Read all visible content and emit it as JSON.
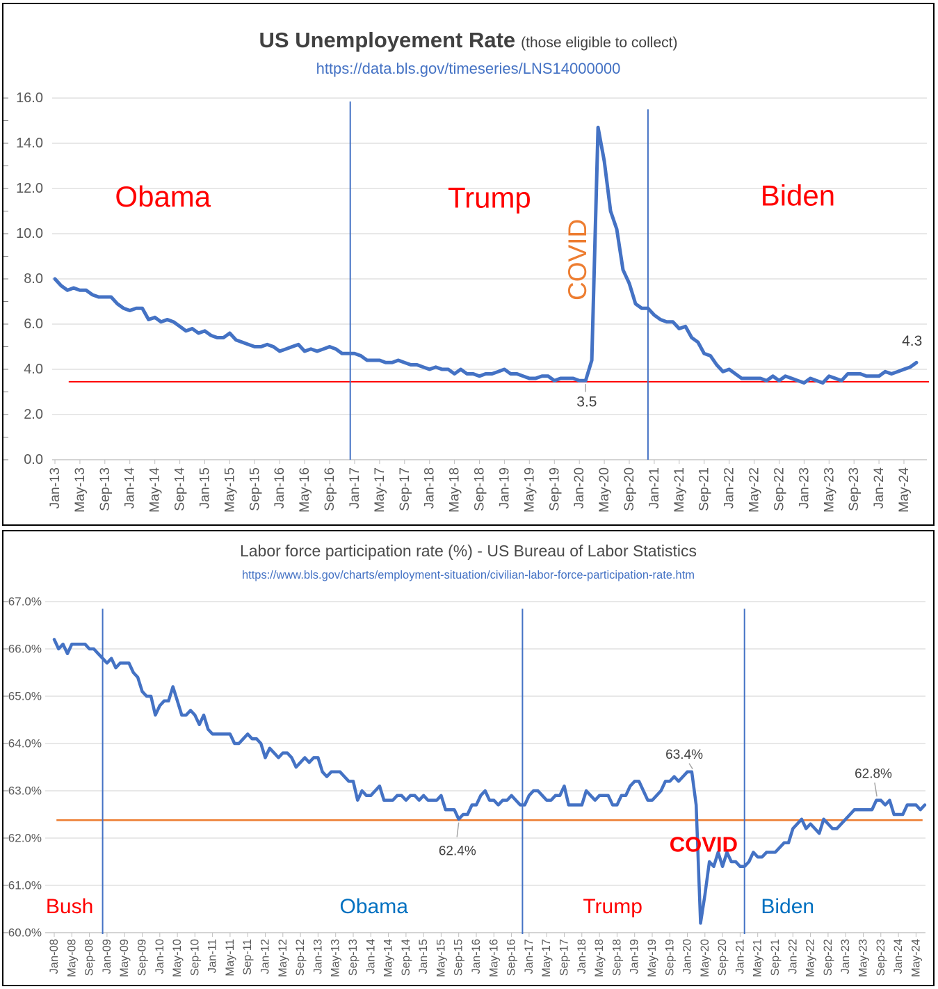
{
  "colors": {
    "series_blue": "#4472C4",
    "gridline": "#D9D9D9",
    "axis_line": "#BFBFBF",
    "axis_text": "#595959",
    "title_text": "#404040",
    "link_blue": "#4472C4",
    "annotation_red": "#FF0000",
    "annotation_orange": "#ED7D31",
    "annotation_blue": "#0070C0",
    "label_gray": "#404040",
    "leader_gray": "#A6A6A6"
  },
  "chart_data": [
    {
      "type": "line",
      "title": "US Unemployement Rate",
      "title_suffix": "(those eligible to collect)",
      "source_url": "https://data.bls.gov/timeseries/LNS14000000",
      "x_start": "Jan-2013",
      "frequency": "monthly",
      "ylim": [
        0,
        16
      ],
      "y_ticks": [
        {
          "value": 16,
          "label": "16.0"
        },
        {
          "value": 14,
          "label": "14.0"
        },
        {
          "value": 12,
          "label": "12.0"
        },
        {
          "value": 10,
          "label": "10.0"
        },
        {
          "value": 8,
          "label": "8.0"
        },
        {
          "value": 6,
          "label": "6.0"
        },
        {
          "value": 4,
          "label": "4.0"
        },
        {
          "value": 2,
          "label": "2.0"
        },
        {
          "value": 0,
          "label": "0.0"
        }
      ],
      "x_tick_labels": [
        "Jan-13",
        "May-13",
        "Sep-13",
        "Jan-14",
        "May-14",
        "Sep-14",
        "Jan-15",
        "May-15",
        "Sep-15",
        "Jan-16",
        "May-16",
        "Sep-16",
        "Jan-17",
        "May-17",
        "Sep-17",
        "Jan-18",
        "May-18",
        "Sep-18",
        "Jan-19",
        "May-19",
        "Sep-19",
        "Jan-20",
        "May-20",
        "Sep-20",
        "Jan-21",
        "May-21",
        "Sep-21",
        "Jan-22",
        "May-22",
        "Sep-22",
        "Jan-23",
        "May-23",
        "Sep-23",
        "Jan-24",
        "May-24"
      ],
      "series": [
        {
          "name": "unemployment_rate_percent",
          "color": "#4472C4",
          "values": [
            8.0,
            7.7,
            7.5,
            7.6,
            7.5,
            7.5,
            7.3,
            7.2,
            7.2,
            7.2,
            6.9,
            6.7,
            6.6,
            6.7,
            6.7,
            6.2,
            6.3,
            6.1,
            6.2,
            6.1,
            5.9,
            5.7,
            5.8,
            5.6,
            5.7,
            5.5,
            5.4,
            5.4,
            5.6,
            5.3,
            5.2,
            5.1,
            5.0,
            5.0,
            5.1,
            5.0,
            4.8,
            4.9,
            5.0,
            5.1,
            4.8,
            4.9,
            4.8,
            4.9,
            5.0,
            4.9,
            4.7,
            4.7,
            4.7,
            4.6,
            4.4,
            4.4,
            4.4,
            4.3,
            4.3,
            4.4,
            4.3,
            4.2,
            4.2,
            4.1,
            4.0,
            4.1,
            4.0,
            4.0,
            3.8,
            4.0,
            3.8,
            3.8,
            3.7,
            3.8,
            3.8,
            3.9,
            4.0,
            3.8,
            3.8,
            3.7,
            3.6,
            3.6,
            3.7,
            3.7,
            3.5,
            3.6,
            3.6,
            3.6,
            3.5,
            3.5,
            4.4,
            14.7,
            13.2,
            11.0,
            10.2,
            8.4,
            7.8,
            6.9,
            6.7,
            6.7,
            6.4,
            6.2,
            6.1,
            6.1,
            5.8,
            5.9,
            5.4,
            5.2,
            4.7,
            4.6,
            4.2,
            3.9,
            4.0,
            3.8,
            3.6,
            3.6,
            3.6,
            3.6,
            3.5,
            3.7,
            3.5,
            3.7,
            3.6,
            3.5,
            3.4,
            3.6,
            3.5,
            3.4,
            3.7,
            3.6,
            3.5,
            3.8,
            3.8,
            3.8,
            3.7,
            3.7,
            3.7,
            3.9,
            3.8,
            3.9,
            4.0,
            4.1,
            4.3
          ]
        }
      ],
      "annotations": [
        {
          "kind": "hline",
          "value": 3.45,
          "color": "#FF0000",
          "width": 2,
          "month_from": 2.2,
          "month_to": 140
        },
        {
          "kind": "vline",
          "month": 47.3,
          "color": "#4472C4",
          "width": 2,
          "value_from": 0,
          "value_to": 15.85
        },
        {
          "kind": "vline",
          "month": 95.0,
          "color": "#4472C4",
          "width": 2,
          "value_from": 0,
          "value_to": 15.5
        },
        {
          "kind": "leader",
          "from": {
            "month": 85,
            "value": 3.35
          },
          "to": {
            "month": 85,
            "value": 3.0
          },
          "color": "#A6A6A6"
        },
        {
          "kind": "text",
          "text": "Obama",
          "color": "#FF0000",
          "size": 42,
          "month": 17.3,
          "value": 11.65
        },
        {
          "kind": "text",
          "text": "Trump",
          "color": "#FF0000",
          "size": 42,
          "month": 69.6,
          "value": 11.6
        },
        {
          "kind": "text",
          "text": "Biden",
          "color": "#FF0000",
          "size": 42,
          "month": 119,
          "value": 11.7
        },
        {
          "kind": "text",
          "text": "COVID",
          "color": "#ED7D31",
          "size": 37,
          "month": 83.7,
          "value": 8.85,
          "rotate": -90
        },
        {
          "kind": "text",
          "text": "3.5",
          "color": "#404040",
          "size": 21,
          "month": 85.2,
          "value": 2.55
        },
        {
          "kind": "text",
          "text": "4.3",
          "color": "#404040",
          "size": 21,
          "month": 137.3,
          "value": 5.25
        }
      ]
    },
    {
      "type": "line",
      "title": "Labor force participation rate (%) - US Bureau of Labor Statistics",
      "title_suffix": "",
      "source_url": "https://www.bls.gov/charts/employment-situation/civilian-labor-force-participation-rate.htm",
      "x_start": "Jan-2008",
      "frequency": "monthly",
      "ylim": [
        60,
        67
      ],
      "y_ticks": [
        {
          "value": 67,
          "label": "67.0%"
        },
        {
          "value": 66,
          "label": "66.0%"
        },
        {
          "value": 65,
          "label": "65.0%"
        },
        {
          "value": 64,
          "label": "64.0%"
        },
        {
          "value": 63,
          "label": "63.0%"
        },
        {
          "value": 62,
          "label": "62.0%"
        },
        {
          "value": 61,
          "label": "61.0%"
        },
        {
          "value": 60,
          "label": "60.0%"
        }
      ],
      "x_tick_labels": [
        "Jan-08",
        "May-08",
        "Sep-08",
        "Jan-09",
        "May-09",
        "Sep-09",
        "Jan-10",
        "May-10",
        "Sep-10",
        "Jan-11",
        "May-11",
        "Sep-11",
        "Jan-12",
        "May-12",
        "Sep-12",
        "Jan-13",
        "May-13",
        "Sep-13",
        "Jan-14",
        "May-14",
        "Sep-14",
        "Jan-15",
        "May-15",
        "Sep-15",
        "Jan-16",
        "May-16",
        "Sep-16",
        "Jan-17",
        "May-17",
        "Sep-17",
        "Jan-18",
        "May-18",
        "Sep-18",
        "Jan-19",
        "May-19",
        "Sep-19",
        "Jan-20",
        "May-20",
        "Sep-20",
        "Jan-21",
        "May-21",
        "Sep-21",
        "Jan-22",
        "May-22",
        "Sep-22",
        "Jan-23",
        "May-23",
        "Sep-23",
        "Jan-24",
        "May-24"
      ],
      "series": [
        {
          "name": "labor_force_participation_rate_percent",
          "color": "#4472C4",
          "values": [
            66.2,
            66.0,
            66.1,
            65.9,
            66.1,
            66.1,
            66.1,
            66.1,
            66.0,
            66.0,
            65.9,
            65.8,
            65.7,
            65.8,
            65.6,
            65.7,
            65.7,
            65.7,
            65.5,
            65.4,
            65.1,
            65.0,
            65.0,
            64.6,
            64.8,
            64.9,
            64.9,
            65.2,
            64.9,
            64.6,
            64.6,
            64.7,
            64.6,
            64.4,
            64.6,
            64.3,
            64.2,
            64.2,
            64.2,
            64.2,
            64.2,
            64.0,
            64.0,
            64.1,
            64.2,
            64.1,
            64.1,
            64.0,
            63.7,
            63.9,
            63.8,
            63.7,
            63.8,
            63.8,
            63.7,
            63.5,
            63.6,
            63.7,
            63.6,
            63.7,
            63.7,
            63.4,
            63.3,
            63.4,
            63.4,
            63.4,
            63.3,
            63.2,
            63.2,
            62.8,
            63.0,
            62.9,
            62.9,
            63.0,
            63.1,
            62.8,
            62.8,
            62.8,
            62.9,
            62.9,
            62.8,
            62.9,
            62.9,
            62.8,
            62.9,
            62.8,
            62.8,
            62.8,
            62.9,
            62.6,
            62.6,
            62.6,
            62.4,
            62.5,
            62.5,
            62.7,
            62.7,
            62.9,
            63.0,
            62.8,
            62.8,
            62.7,
            62.8,
            62.8,
            62.9,
            62.8,
            62.7,
            62.7,
            62.9,
            63.0,
            63.0,
            62.9,
            62.8,
            62.8,
            62.9,
            62.9,
            63.1,
            62.7,
            62.7,
            62.7,
            62.7,
            63.0,
            62.9,
            62.8,
            62.9,
            62.9,
            62.9,
            62.7,
            62.7,
            62.9,
            62.9,
            63.1,
            63.2,
            63.2,
            63.0,
            62.8,
            62.8,
            62.9,
            63.0,
            63.2,
            63.2,
            63.3,
            63.2,
            63.3,
            63.4,
            63.4,
            62.7,
            60.2,
            60.8,
            61.5,
            61.4,
            61.7,
            61.4,
            61.7,
            61.5,
            61.5,
            61.4,
            61.4,
            61.5,
            61.7,
            61.6,
            61.6,
            61.7,
            61.7,
            61.7,
            61.8,
            61.9,
            61.9,
            62.2,
            62.3,
            62.4,
            62.2,
            62.3,
            62.2,
            62.1,
            62.4,
            62.3,
            62.2,
            62.2,
            62.3,
            62.4,
            62.5,
            62.6,
            62.6,
            62.6,
            62.6,
            62.6,
            62.8,
            62.8,
            62.7,
            62.8,
            62.5,
            62.5,
            62.5,
            62.7,
            62.7,
            62.7,
            62.6,
            62.7
          ]
        }
      ],
      "annotations": [
        {
          "kind": "hline",
          "value": 62.38,
          "color": "#ED7D31",
          "width": 2.5,
          "month_from": 0.5,
          "month_to": 197.5
        },
        {
          "kind": "vline",
          "month": 11,
          "color": "#4472C4",
          "width": 2,
          "value_from": 59.97,
          "value_to": 66.85
        },
        {
          "kind": "vline",
          "month": 106.5,
          "color": "#4472C4",
          "width": 2,
          "value_from": 59.97,
          "value_to": 66.85
        },
        {
          "kind": "vline",
          "month": 157,
          "color": "#4472C4",
          "width": 2,
          "value_from": 59.97,
          "value_to": 66.85
        },
        {
          "kind": "leader",
          "from": {
            "month": 144.4,
            "value": 63.58
          },
          "to": {
            "month": 145.2,
            "value": 63.46
          },
          "color": "#A6A6A6"
        },
        {
          "kind": "leader",
          "from": {
            "month": 92,
            "value": 62.33
          },
          "to": {
            "month": 91.6,
            "value": 62.02
          },
          "color": "#A6A6A6"
        },
        {
          "kind": "leader",
          "from": {
            "month": 186.6,
            "value": 63.17
          },
          "to": {
            "month": 187.1,
            "value": 62.88
          },
          "color": "#A6A6A6"
        },
        {
          "kind": "text",
          "text": "Bush",
          "color": "#FF0000",
          "size": 30,
          "month": 3.5,
          "value": 60.55
        },
        {
          "kind": "text",
          "text": "Obama",
          "color": "#0070C0",
          "size": 30,
          "month": 72.7,
          "value": 60.55
        },
        {
          "kind": "text",
          "text": "Trump",
          "color": "#FF0000",
          "size": 30,
          "month": 127,
          "value": 60.55
        },
        {
          "kind": "text",
          "text": "Biden",
          "color": "#0070C0",
          "size": 30,
          "month": 166.8,
          "value": 60.55
        },
        {
          "kind": "text",
          "text": "COVID",
          "color": "#FF0000",
          "size": 31,
          "bold": true,
          "month": 147.7,
          "value": 61.87
        },
        {
          "kind": "text",
          "text": "63.4%",
          "color": "#404040",
          "size": 19,
          "month": 143.3,
          "value": 63.76
        },
        {
          "kind": "text",
          "text": "62.4%",
          "color": "#404040",
          "size": 19,
          "month": 91.7,
          "value": 61.72
        },
        {
          "kind": "text",
          "text": "62.8%",
          "color": "#404040",
          "size": 19,
          "month": 186.3,
          "value": 63.35
        }
      ]
    }
  ]
}
